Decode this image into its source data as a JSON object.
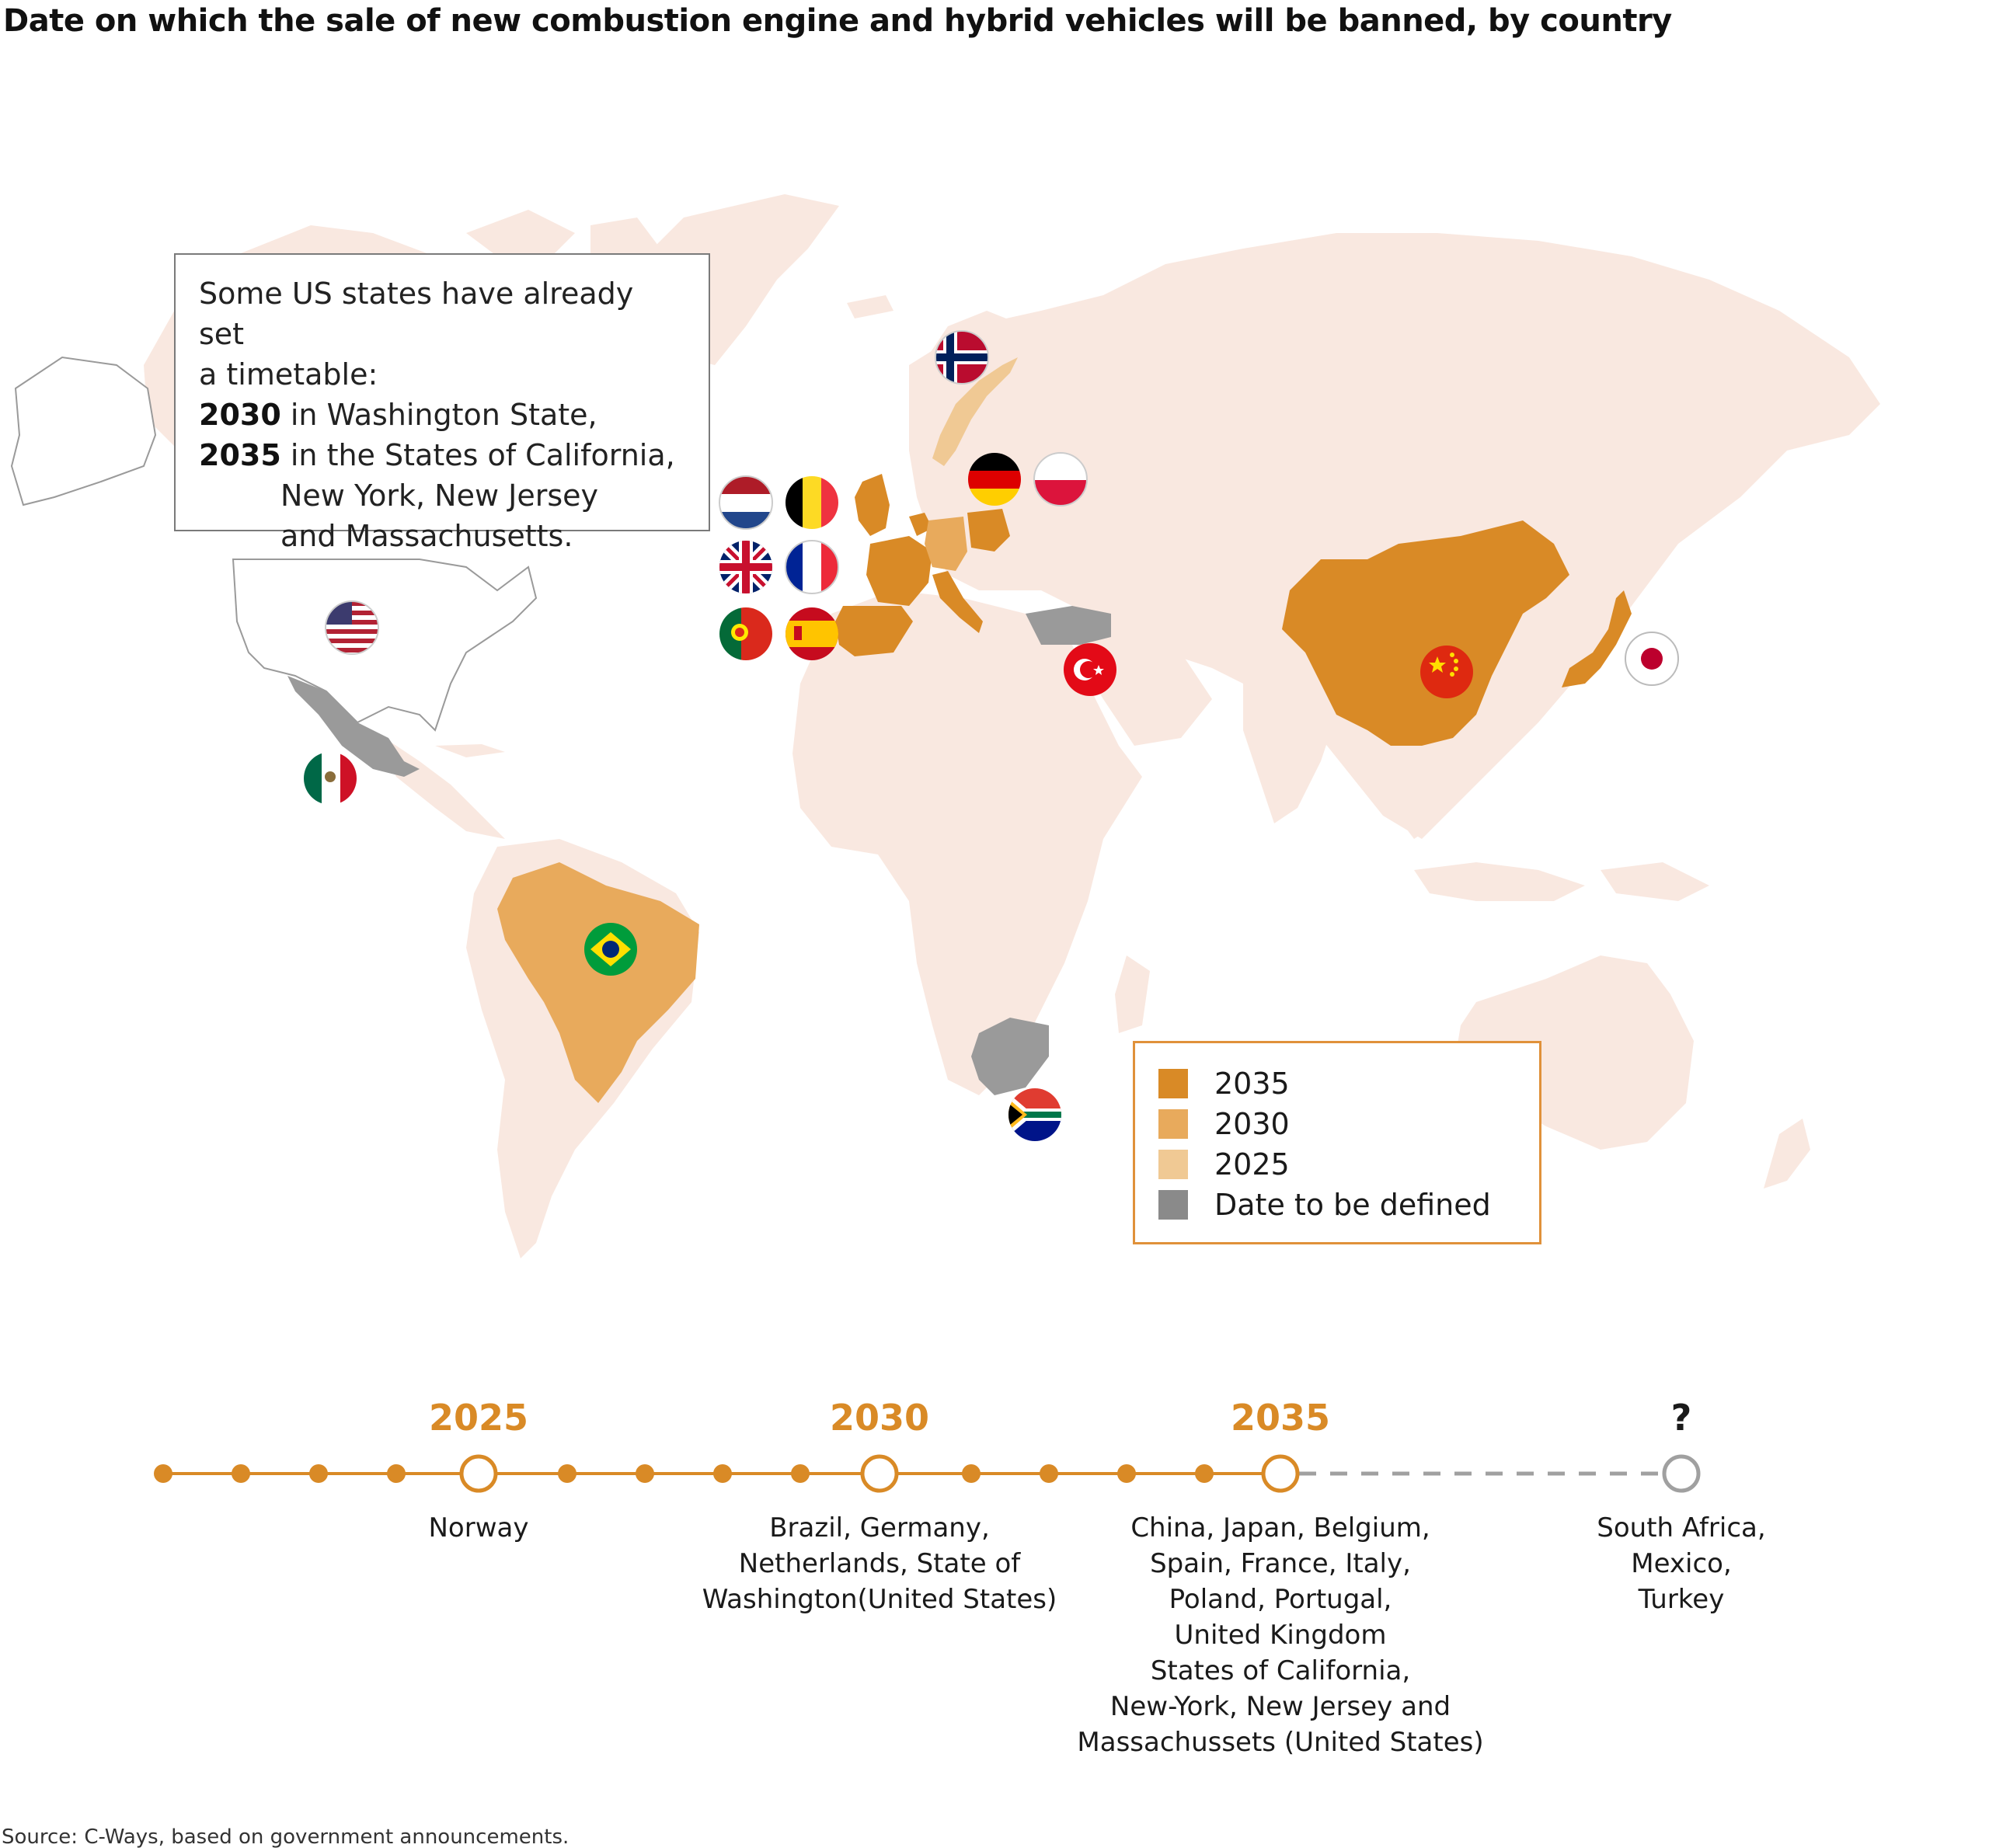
{
  "title": "Date on which the sale of new combustion engine and hybrid vehicles will be banned, by country",
  "us_note": {
    "line1": "Some US states have already set",
    "line2": "a timetable:",
    "item1_year": "2030",
    "item1_text": " in Washington State,",
    "item2_year": "2035",
    "item2_text": " in the States of California,",
    "item2_line2": "New York, New Jersey",
    "item2_line3": "and Massachusetts."
  },
  "legend": [
    {
      "label": "2035",
      "color": "#d98a26"
    },
    {
      "label": "2030",
      "color": "#e8aa5c"
    },
    {
      "label": "2025",
      "color": "#f0c994"
    },
    {
      "label": "Date to be defined",
      "color": "#8a8a8a"
    }
  ],
  "colors": {
    "land": "#f9e8e0",
    "y2035": "#d98a26",
    "y2030": "#e8aa5c",
    "y2025": "#f0c994",
    "undefined": "#9a9a9a",
    "timeline": "#d98a26",
    "timeline_dashed": "#a0a0a0"
  },
  "flags": [
    "norway-flag",
    "netherlands-flag",
    "belgium-flag",
    "uk-flag",
    "france-flag",
    "portugal-flag",
    "spain-flag",
    "germany-flag",
    "poland-flag",
    "usa-flag",
    "mexico-flag",
    "brazil-flag",
    "turkey-flag",
    "china-flag",
    "japan-flag",
    "south-africa-flag"
  ],
  "timeline": {
    "milestones": [
      {
        "year": "2025",
        "caption": [
          "Norway"
        ]
      },
      {
        "year": "2030",
        "caption": [
          "Brazil, Germany,",
          "Netherlands, State of",
          "Washington(United States)"
        ]
      },
      {
        "year": "2035",
        "caption": [
          "China, Japan, Belgium,",
          "Spain, France, Italy,",
          "Poland, Portugal,",
          "United Kingdom",
          "States of California,",
          "New-York, New Jersey and",
          "Massachussets (United States)"
        ]
      },
      {
        "year": "?",
        "caption": [
          "South Africa,",
          "Mexico,",
          "Turkey"
        ]
      }
    ]
  },
  "source": "Source: C-Ways, based on government announcements."
}
